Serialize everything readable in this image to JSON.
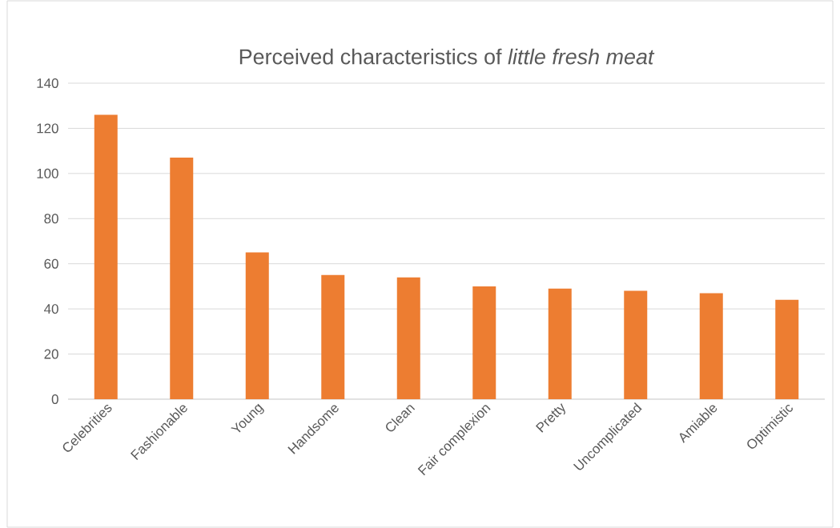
{
  "chart_data": {
    "type": "bar",
    "title": "Perceived characteristics of *little fresh meat*",
    "categories": [
      "Celebrities",
      "Fashionable",
      "Young",
      "Handsome",
      "Clean",
      "Fair complexion",
      "Pretty",
      "Uncomplicated",
      "Amiable",
      "Optimistic"
    ],
    "values": [
      126,
      107,
      65,
      55,
      54,
      50,
      49,
      48,
      47,
      44
    ],
    "color": "#ed7d31",
    "ylim": [
      0,
      140
    ],
    "yticks": [
      0,
      20,
      40,
      60,
      80,
      100,
      120,
      140
    ],
    "grid": "y"
  }
}
